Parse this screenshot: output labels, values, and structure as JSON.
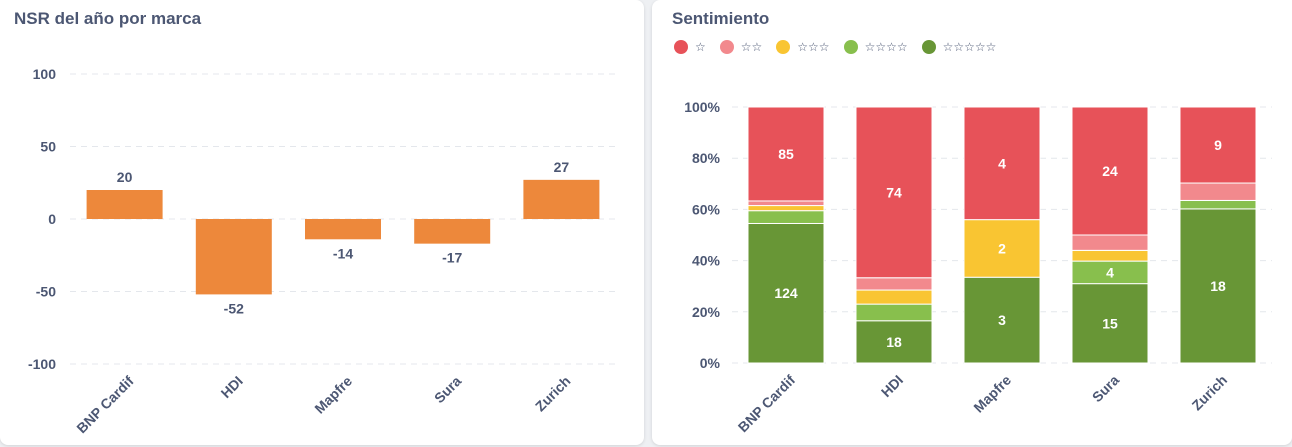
{
  "cards": {
    "nsr": {
      "title": "NSR del año por marca"
    },
    "sentiment": {
      "title": "Sentimiento"
    }
  },
  "chart_data": [
    {
      "type": "bar",
      "title": "NSR del año por marca",
      "categories": [
        "BNP Cardif",
        "HDI",
        "Mapfre",
        "Sura",
        "Zurich"
      ],
      "values": [
        20,
        -52,
        -14,
        -17,
        27
      ],
      "value_labels": [
        "20",
        "-52",
        "-14",
        "-17",
        "27"
      ],
      "ylim": [
        -100,
        100
      ],
      "yticks": [
        100,
        50,
        0,
        -50,
        -100
      ],
      "ytick_labels": [
        "100",
        "50",
        "0",
        "-50",
        "-100"
      ],
      "grid": true,
      "legend": "none",
      "colors": {
        "bar": "#ed883b"
      }
    },
    {
      "type": "bar",
      "stacked": true,
      "normalized": true,
      "title": "Sentimiento",
      "categories": [
        "BNP Cardif",
        "HDI",
        "Mapfre",
        "Sura",
        "Zurich"
      ],
      "ylim": [
        0,
        100
      ],
      "yticks": [
        0,
        20,
        40,
        60,
        80,
        100
      ],
      "ytick_labels": [
        "0%",
        "20%",
        "40%",
        "60%",
        "80%",
        "100%"
      ],
      "grid": true,
      "legend": "top-left",
      "series": [
        {
          "name": "☆☆☆☆☆",
          "color": "#689636",
          "values": [
            54.5,
            16.5,
            33.5,
            31,
            60.2
          ],
          "labels": [
            "124",
            "18",
            "3",
            "15",
            "18"
          ]
        },
        {
          "name": "☆☆☆☆",
          "color": "#88bf4d",
          "values": [
            5,
            6.5,
            0,
            8.8,
            3.3
          ],
          "labels": [
            "",
            "",
            "",
            "4",
            ""
          ]
        },
        {
          "name": "☆☆☆",
          "color": "#f9c532",
          "values": [
            2,
            5.5,
            22.5,
            4.2,
            0
          ],
          "labels": [
            "",
            "",
            "2",
            "",
            ""
          ]
        },
        {
          "name": "☆☆",
          "color": "#f2898d",
          "values": [
            1.8,
            4.8,
            0,
            6,
            6.8
          ],
          "labels": [
            "",
            "",
            "",
            "",
            ""
          ]
        },
        {
          "name": "☆",
          "color": "#e75259",
          "values": [
            36.7,
            66.7,
            44,
            50,
            29.7
          ],
          "labels": [
            "85",
            "74",
            "4",
            "24",
            "9"
          ]
        }
      ]
    }
  ]
}
